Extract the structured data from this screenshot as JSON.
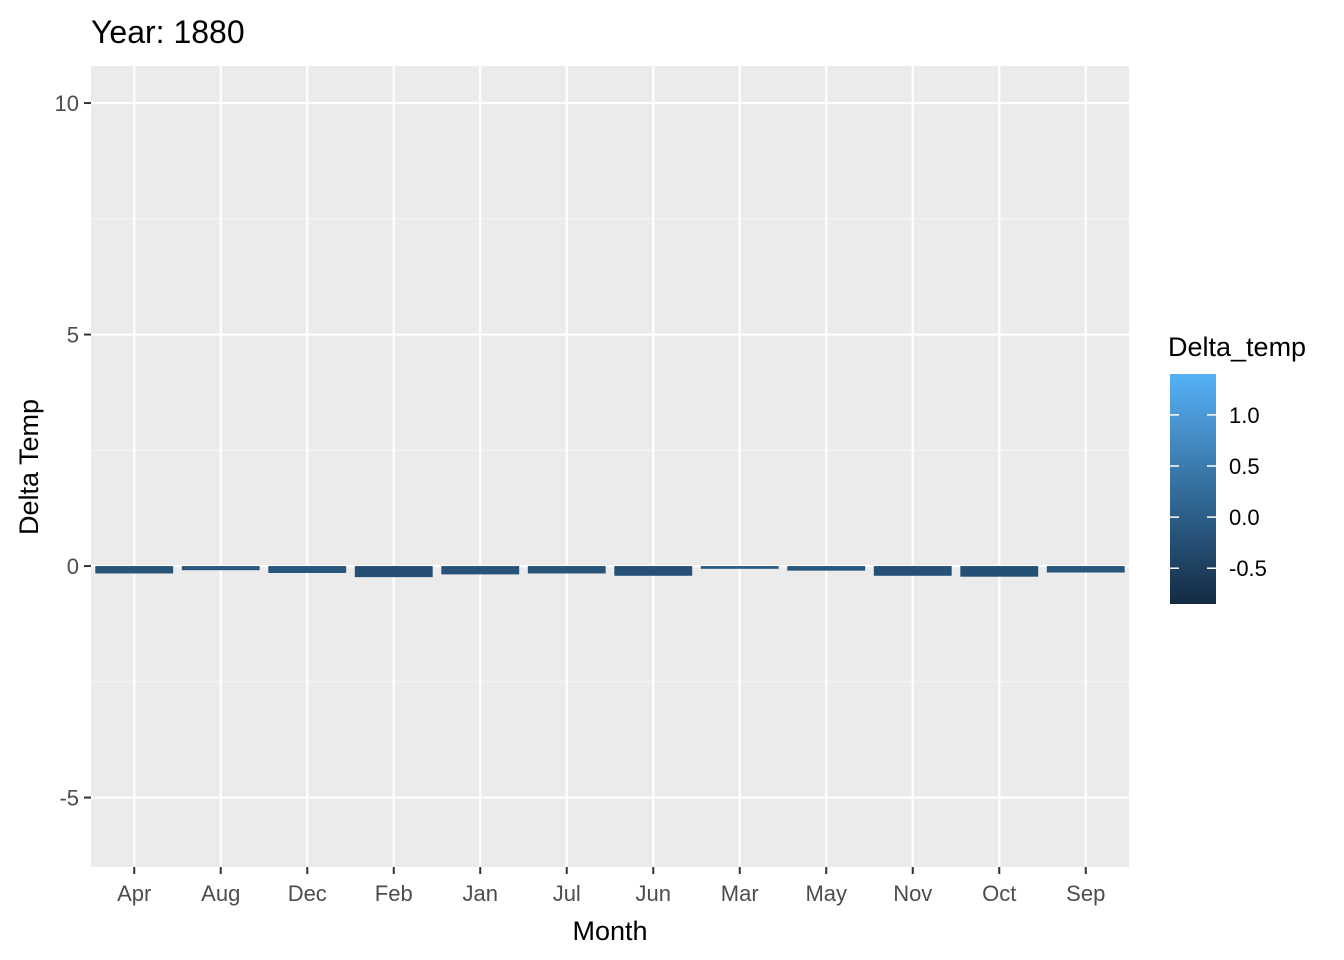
{
  "chart_data": {
    "type": "bar",
    "title": "Year: 1880",
    "xlabel": "Month",
    "ylabel": "Delta Temp",
    "categories": [
      "Apr",
      "Aug",
      "Dec",
      "Feb",
      "Jan",
      "Jul",
      "Jun",
      "Mar",
      "May",
      "Nov",
      "Oct",
      "Sep"
    ],
    "values": [
      -0.16,
      -0.09,
      -0.15,
      -0.24,
      -0.18,
      -0.16,
      -0.21,
      -0.06,
      -0.1,
      -0.21,
      -0.23,
      -0.14
    ],
    "ylim": [
      -6.5,
      10.8
    ],
    "yticks": [
      -5,
      0,
      5,
      10
    ],
    "grid": true,
    "legend": {
      "title": "Delta_temp",
      "position": "right",
      "range": [
        -0.85,
        1.4
      ],
      "ticks": [
        -0.5,
        0.0,
        0.5,
        1.0
      ],
      "tick_labels": [
        "-0.5",
        "0.0",
        "0.5",
        "1.0"
      ],
      "color_low": "#132B43",
      "color_high": "#56B1F7"
    },
    "colors": {
      "panel_background": "#EBEBEB",
      "grid_major": "#FFFFFF",
      "grid_minor": "#F4F4F4"
    }
  }
}
